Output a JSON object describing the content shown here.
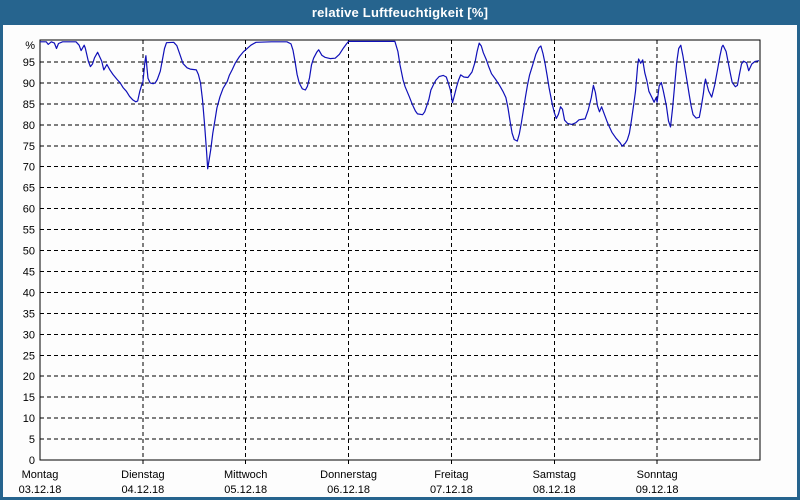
{
  "window": {
    "title": "relative Luftfeuchtigkeit [%]"
  },
  "colors": {
    "chrome": "#26648e",
    "line": "#1010b8",
    "grid": "#000000",
    "text": "#000000",
    "background": "#fdfdfd"
  },
  "chart_data": {
    "type": "line",
    "title": "relative Luftfeuchtigkeit [%]",
    "unit_label": "%",
    "ylabel": "relative Luftfeuchtigkeit [%]",
    "ylim": [
      0,
      100
    ],
    "y_ticks": [
      0,
      5,
      10,
      15,
      20,
      25,
      30,
      35,
      40,
      45,
      50,
      55,
      60,
      65,
      70,
      75,
      80,
      85,
      90,
      95
    ],
    "grid": "dashed",
    "legend": "none",
    "x_axis": {
      "unit": "days",
      "days": [
        {
          "name": "Montag",
          "date": "03.12.18"
        },
        {
          "name": "Dienstag",
          "date": "04.12.18"
        },
        {
          "name": "Mittwoch",
          "date": "05.12.18"
        },
        {
          "name": "Donnerstag",
          "date": "06.12.18"
        },
        {
          "name": "Freitag",
          "date": "07.12.18"
        },
        {
          "name": "Samstag",
          "date": "08.12.18"
        },
        {
          "name": "Sonntag",
          "date": "09.12.18"
        }
      ]
    },
    "series": [
      {
        "name": "relative Luftfeuchtigkeit",
        "unit": "%",
        "x_unit": "days_since_monday_00h",
        "points": [
          [
            0.0,
            99.8
          ],
          [
            0.06,
            99.8
          ],
          [
            0.08,
            99.2
          ],
          [
            0.11,
            99.8
          ],
          [
            0.14,
            99.5
          ],
          [
            0.16,
            98.2
          ],
          [
            0.18,
            99.4
          ],
          [
            0.22,
            99.8
          ],
          [
            0.35,
            99.8
          ],
          [
            0.38,
            99.0
          ],
          [
            0.4,
            97.7
          ],
          [
            0.43,
            99.0
          ],
          [
            0.44,
            98.3
          ],
          [
            0.47,
            95.2
          ],
          [
            0.49,
            93.9
          ],
          [
            0.51,
            94.5
          ],
          [
            0.53,
            96.0
          ],
          [
            0.56,
            97.3
          ],
          [
            0.6,
            95.2
          ],
          [
            0.62,
            93.1
          ],
          [
            0.65,
            94.4
          ],
          [
            0.68,
            93.1
          ],
          [
            0.71,
            92.0
          ],
          [
            0.75,
            90.8
          ],
          [
            0.78,
            90.0
          ],
          [
            0.81,
            88.8
          ],
          [
            0.84,
            88.0
          ],
          [
            0.87,
            86.8
          ],
          [
            0.9,
            86.0
          ],
          [
            0.93,
            85.5
          ],
          [
            0.95,
            85.7
          ],
          [
            0.97,
            88.0
          ],
          [
            0.99,
            89.6
          ],
          [
            1.0,
            90.2
          ],
          [
            1.02,
            95.0
          ],
          [
            1.03,
            96.5
          ],
          [
            1.04,
            93.5
          ],
          [
            1.05,
            91.1
          ],
          [
            1.07,
            90.0
          ],
          [
            1.1,
            89.8
          ],
          [
            1.12,
            90.0
          ],
          [
            1.14,
            90.8
          ],
          [
            1.17,
            92.8
          ],
          [
            1.19,
            95.5
          ],
          [
            1.21,
            98.2
          ],
          [
            1.23,
            99.6
          ],
          [
            1.3,
            99.7
          ],
          [
            1.33,
            98.9
          ],
          [
            1.36,
            96.8
          ],
          [
            1.39,
            94.6
          ],
          [
            1.43,
            93.6
          ],
          [
            1.46,
            93.3
          ],
          [
            1.52,
            93.1
          ],
          [
            1.54,
            92.0
          ],
          [
            1.56,
            90.0
          ],
          [
            1.58,
            86.0
          ],
          [
            1.6,
            80.0
          ],
          [
            1.62,
            73.5
          ],
          [
            1.63,
            69.5
          ],
          [
            1.64,
            71.0
          ],
          [
            1.66,
            74.0
          ],
          [
            1.68,
            78.0
          ],
          [
            1.7,
            81.0
          ],
          [
            1.72,
            84.0
          ],
          [
            1.75,
            86.7
          ],
          [
            1.78,
            88.7
          ],
          [
            1.82,
            90.3
          ],
          [
            1.84,
            91.8
          ],
          [
            1.87,
            93.2
          ],
          [
            1.9,
            94.8
          ],
          [
            1.94,
            96.3
          ],
          [
            1.97,
            97.2
          ],
          [
            1.98,
            97.5
          ],
          [
            2.0,
            97.9
          ],
          [
            2.05,
            99.0
          ],
          [
            2.1,
            99.7
          ],
          [
            2.25,
            99.8
          ],
          [
            2.4,
            99.8
          ],
          [
            2.44,
            99.3
          ],
          [
            2.46,
            97.8
          ],
          [
            2.48,
            95.0
          ],
          [
            2.5,
            92.0
          ],
          [
            2.52,
            90.0
          ],
          [
            2.55,
            88.6
          ],
          [
            2.58,
            88.3
          ],
          [
            2.6,
            89.2
          ],
          [
            2.62,
            91.2
          ],
          [
            2.64,
            94.3
          ],
          [
            2.66,
            95.9
          ],
          [
            2.69,
            97.3
          ],
          [
            2.71,
            97.9
          ],
          [
            2.74,
            96.6
          ],
          [
            2.77,
            96.1
          ],
          [
            2.82,
            95.8
          ],
          [
            2.87,
            95.9
          ],
          [
            2.91,
            96.8
          ],
          [
            2.95,
            98.3
          ],
          [
            2.98,
            99.3
          ],
          [
            3.0,
            99.9
          ],
          [
            3.45,
            99.9
          ],
          [
            3.48,
            97.5
          ],
          [
            3.5,
            94.3
          ],
          [
            3.53,
            90.7
          ],
          [
            3.55,
            89.1
          ],
          [
            3.57,
            87.9
          ],
          [
            3.59,
            86.7
          ],
          [
            3.61,
            85.5
          ],
          [
            3.63,
            84.3
          ],
          [
            3.65,
            83.3
          ],
          [
            3.67,
            82.6
          ],
          [
            3.72,
            82.4
          ],
          [
            3.74,
            83.1
          ],
          [
            3.76,
            84.5
          ],
          [
            3.78,
            86.0
          ],
          [
            3.8,
            88.3
          ],
          [
            3.83,
            89.8
          ],
          [
            3.85,
            90.7
          ],
          [
            3.88,
            91.5
          ],
          [
            3.92,
            91.8
          ],
          [
            3.95,
            91.4
          ],
          [
            3.97,
            90.0
          ],
          [
            3.99,
            88.3
          ],
          [
            4.01,
            85.3
          ],
          [
            4.03,
            87.1
          ],
          [
            4.05,
            89.1
          ],
          [
            4.07,
            90.7
          ],
          [
            4.09,
            91.9
          ],
          [
            4.12,
            91.4
          ],
          [
            4.16,
            91.3
          ],
          [
            4.2,
            92.6
          ],
          [
            4.23,
            95.0
          ],
          [
            4.25,
            97.5
          ],
          [
            4.27,
            99.5
          ],
          [
            4.29,
            98.8
          ],
          [
            4.31,
            97.2
          ],
          [
            4.34,
            95.5
          ],
          [
            4.36,
            94.0
          ],
          [
            4.39,
            92.2
          ],
          [
            4.43,
            90.8
          ],
          [
            4.47,
            89.3
          ],
          [
            4.5,
            88.0
          ],
          [
            4.53,
            86.5
          ],
          [
            4.55,
            84.0
          ],
          [
            4.57,
            80.8
          ],
          [
            4.59,
            78.0
          ],
          [
            4.61,
            76.5
          ],
          [
            4.64,
            76.1
          ],
          [
            4.66,
            77.8
          ],
          [
            4.68,
            80.5
          ],
          [
            4.7,
            83.5
          ],
          [
            4.72,
            86.7
          ],
          [
            4.74,
            89.5
          ],
          [
            4.76,
            91.9
          ],
          [
            4.79,
            94.3
          ],
          [
            4.82,
            96.8
          ],
          [
            4.85,
            98.4
          ],
          [
            4.87,
            98.8
          ],
          [
            4.89,
            97.0
          ],
          [
            4.91,
            94.7
          ],
          [
            4.93,
            91.8
          ],
          [
            4.95,
            88.8
          ],
          [
            4.98,
            85.0
          ],
          [
            5.0,
            82.9
          ],
          [
            5.02,
            81.5
          ],
          [
            5.04,
            82.5
          ],
          [
            5.06,
            84.3
          ],
          [
            5.08,
            83.7
          ],
          [
            5.1,
            81.1
          ],
          [
            5.13,
            80.3
          ],
          [
            5.17,
            80.1
          ],
          [
            5.21,
            80.5
          ],
          [
            5.24,
            81.2
          ],
          [
            5.3,
            81.4
          ],
          [
            5.33,
            83.5
          ],
          [
            5.36,
            86.5
          ],
          [
            5.38,
            89.4
          ],
          [
            5.4,
            87.7
          ],
          [
            5.42,
            84.5
          ],
          [
            5.44,
            83.1
          ],
          [
            5.46,
            84.3
          ],
          [
            5.49,
            82.3
          ],
          [
            5.51,
            81.0
          ],
          [
            5.53,
            79.8
          ],
          [
            5.56,
            78.2
          ],
          [
            5.6,
            76.8
          ],
          [
            5.64,
            75.7
          ],
          [
            5.66,
            74.9
          ],
          [
            5.69,
            75.6
          ],
          [
            5.71,
            76.4
          ],
          [
            5.73,
            78.0
          ],
          [
            5.75,
            81.0
          ],
          [
            5.77,
            84.5
          ],
          [
            5.79,
            88.0
          ],
          [
            5.81,
            94.0
          ],
          [
            5.82,
            95.7
          ],
          [
            5.84,
            94.7
          ],
          [
            5.86,
            95.5
          ],
          [
            5.88,
            92.4
          ],
          [
            5.9,
            90.5
          ],
          [
            5.92,
            88.0
          ],
          [
            5.95,
            86.5
          ],
          [
            5.97,
            85.4
          ],
          [
            5.99,
            86.5
          ],
          [
            6.0,
            85.4
          ],
          [
            6.02,
            89.3
          ],
          [
            6.04,
            90.1
          ],
          [
            6.06,
            88.1
          ],
          [
            6.09,
            84.5
          ],
          [
            6.11,
            80.9
          ],
          [
            6.13,
            79.5
          ],
          [
            6.15,
            84.0
          ],
          [
            6.17,
            89.3
          ],
          [
            6.19,
            94.9
          ],
          [
            6.21,
            98.2
          ],
          [
            6.23,
            99.0
          ],
          [
            6.25,
            96.5
          ],
          [
            6.27,
            93.5
          ],
          [
            6.29,
            90.5
          ],
          [
            6.31,
            87.5
          ],
          [
            6.33,
            84.5
          ],
          [
            6.35,
            82.4
          ],
          [
            6.38,
            81.6
          ],
          [
            6.41,
            81.8
          ],
          [
            6.43,
            84.5
          ],
          [
            6.45,
            87.5
          ],
          [
            6.46,
            89.8
          ],
          [
            6.47,
            90.9
          ],
          [
            6.5,
            88.1
          ],
          [
            6.53,
            86.6
          ],
          [
            6.56,
            89.5
          ],
          [
            6.59,
            93.5
          ],
          [
            6.61,
            96.4
          ],
          [
            6.63,
            98.6
          ],
          [
            6.64,
            99.0
          ],
          [
            6.67,
            97.5
          ],
          [
            6.69,
            95.0
          ],
          [
            6.71,
            92.4
          ],
          [
            6.73,
            90.1
          ],
          [
            6.76,
            89.1
          ],
          [
            6.78,
            89.4
          ],
          [
            6.8,
            92.0
          ],
          [
            6.82,
            94.5
          ],
          [
            6.84,
            95.2
          ],
          [
            6.87,
            94.8
          ],
          [
            6.89,
            92.9
          ],
          [
            6.92,
            94.5
          ],
          [
            6.95,
            95.1
          ],
          [
            6.99,
            95.3
          ]
        ]
      }
    ]
  }
}
